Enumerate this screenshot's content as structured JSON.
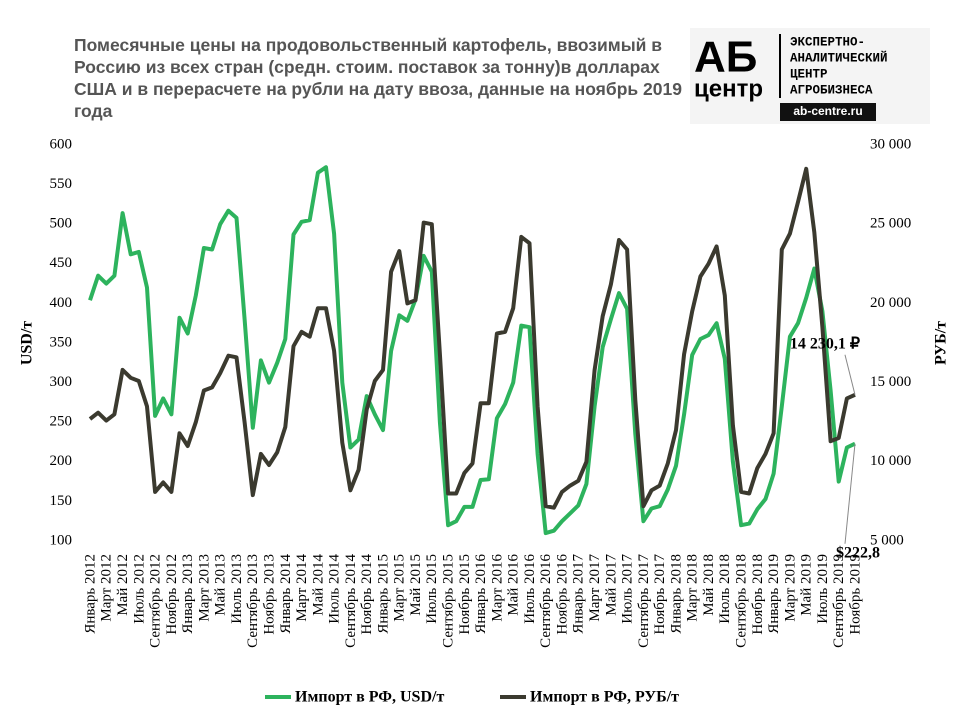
{
  "chart_data": {
    "type": "line",
    "title": "Помесячные цены на продовольственный картофель, ввозимый в Россию из всех стран (средн. стоим. поставок за тонну)в долларах США и в перерасчете на рубли на дату ввоза, данные на ноябрь 2019 года",
    "ylabel": "USD/т",
    "y2label": "РУБ/т",
    "ylim": [
      100,
      600
    ],
    "yticks": [
      100,
      150,
      200,
      250,
      300,
      350,
      400,
      450,
      500,
      550,
      600
    ],
    "y2lim": [
      5000,
      30000
    ],
    "y2ticks": [
      {
        "value": 5000,
        "label": "5 000"
      },
      {
        "value": 10000,
        "label": "10 000"
      },
      {
        "value": 15000,
        "label": "15 000"
      },
      {
        "value": 20000,
        "label": "20 000"
      },
      {
        "value": 25000,
        "label": "25 000"
      },
      {
        "value": 30000,
        "label": "30 000"
      }
    ],
    "legend": "bottom",
    "categories": [
      "Январь 2012",
      null,
      "Март 2012",
      null,
      "Май 2012",
      null,
      "Июль 2012",
      null,
      "Сентябрь 2012",
      null,
      "Ноябрь 2012",
      null,
      "Январь 2013",
      null,
      "Март 2013",
      null,
      "Май 2013",
      null,
      "Июль 2013",
      null,
      "Сентябрь 2013",
      null,
      "Ноябрь 2013",
      null,
      "Январь 2014",
      null,
      "Март 2014",
      null,
      "Май 2014",
      null,
      "Июль 2014",
      null,
      "Сентябрь 2014",
      null,
      "Ноябрь 2014",
      null,
      "Январь 2015",
      null,
      "Март 2015",
      null,
      "Май 2015",
      null,
      "Июль 2015",
      null,
      "Сентябрь 2015",
      null,
      "Ноябрь 2015",
      null,
      "Январь 2016",
      null,
      "Март 2016",
      null,
      "Май 2016",
      null,
      "Июль 2016",
      null,
      "Сентябрь 2016",
      null,
      "Ноябрь 2016",
      null,
      "Январь 2017",
      null,
      "Март 2017",
      null,
      "Май 2017",
      null,
      "Июль 2017",
      null,
      "Сентябрь 2017",
      null,
      "Ноябрь 2017",
      null,
      "Январь 2018",
      null,
      "Март 2018",
      null,
      "Май 2018",
      null,
      "Июль 2018",
      null,
      "Сентябрь 2018",
      null,
      "Ноябрь 2018",
      null,
      "Январь 2019",
      null,
      "Март 2019",
      null,
      "Май 2019",
      null,
      "Июль 2019",
      null,
      "Сентябрь 2019",
      null,
      "Ноябрь 2019"
    ],
    "series": [
      {
        "name": "Импорт в РФ, USD/т",
        "color": "#2db35d",
        "axis": "y",
        "values": [
          404,
          435,
          425,
          435,
          514,
          462,
          465,
          420,
          258,
          280,
          260,
          382,
          362,
          410,
          470,
          468,
          500,
          517,
          508,
          380,
          243,
          328,
          300,
          325,
          355,
          487,
          503,
          505,
          565,
          572,
          488,
          300,
          218,
          228,
          283,
          260,
          240,
          340,
          385,
          378,
          405,
          460,
          440,
          250,
          120,
          125,
          143,
          143,
          177,
          178,
          255,
          273,
          300,
          372,
          370,
          210,
          110,
          113,
          125,
          135,
          145,
          172,
          270,
          345,
          380,
          413,
          393,
          235,
          125,
          141,
          144,
          165,
          195,
          260,
          335,
          355,
          360,
          375,
          330,
          200,
          120,
          122,
          140,
          153,
          185,
          270,
          358,
          375,
          407,
          444,
          390,
          290,
          175,
          218,
          222.8
        ],
        "value_labels": [
          null,
          null,
          null,
          null,
          null,
          null,
          null,
          null,
          null,
          null,
          null,
          null,
          null,
          null,
          null,
          null,
          null,
          null,
          null,
          null,
          null,
          null,
          null,
          null,
          null,
          null,
          null,
          null,
          null,
          null,
          null,
          null,
          null,
          null,
          null,
          null,
          null,
          null,
          null,
          null,
          null,
          null,
          null,
          null,
          null,
          null,
          null,
          null,
          null,
          null,
          null,
          null,
          null,
          null,
          null,
          null,
          null,
          null,
          null,
          null,
          null,
          null,
          null,
          null,
          null,
          null,
          null,
          null,
          null,
          null,
          null,
          null,
          null,
          null,
          null,
          null,
          null,
          null,
          null,
          null,
          null,
          null,
          null,
          null,
          null,
          null,
          null,
          null,
          null,
          null,
          null,
          null,
          null,
          null,
          "$222,8"
        ]
      },
      {
        "name": "Импорт в РФ, РУБ/т",
        "color": "#3b3a2f",
        "axis": "y2",
        "values": [
          12700,
          13100,
          12600,
          13000,
          15800,
          15300,
          15100,
          13500,
          8100,
          8700,
          8100,
          11800,
          11000,
          12500,
          14500,
          14700,
          15600,
          16700,
          16600,
          12500,
          7900,
          10500,
          9800,
          10600,
          12200,
          17300,
          18200,
          17900,
          19700,
          19700,
          17000,
          11200,
          8200,
          9500,
          13300,
          15100,
          15800,
          22000,
          23300,
          20000,
          20200,
          25100,
          25000,
          16800,
          8000,
          8000,
          9300,
          9900,
          13700,
          13700,
          18100,
          18200,
          19700,
          24200,
          23800,
          13500,
          7200,
          7100,
          8100,
          8500,
          8800,
          10000,
          15800,
          19200,
          21200,
          24000,
          23400,
          13900,
          7200,
          8200,
          8500,
          9900,
          12000,
          16800,
          19500,
          21700,
          22500,
          23600,
          20500,
          12300,
          8100,
          8000,
          9600,
          10500,
          11800,
          23400,
          24400,
          26400,
          28500,
          24500,
          18500,
          11300,
          11500,
          14000,
          14230.1
        ],
        "value_labels": [
          null,
          null,
          null,
          null,
          null,
          null,
          null,
          null,
          null,
          null,
          null,
          null,
          null,
          null,
          null,
          null,
          null,
          null,
          null,
          null,
          null,
          null,
          null,
          null,
          null,
          null,
          null,
          null,
          null,
          null,
          null,
          null,
          null,
          null,
          null,
          null,
          null,
          null,
          null,
          null,
          null,
          null,
          null,
          null,
          null,
          null,
          null,
          null,
          null,
          null,
          null,
          null,
          null,
          null,
          null,
          null,
          null,
          null,
          null,
          null,
          null,
          null,
          null,
          null,
          null,
          null,
          null,
          null,
          null,
          null,
          null,
          null,
          null,
          null,
          null,
          null,
          null,
          null,
          null,
          null,
          null,
          null,
          null,
          null,
          null,
          null,
          null,
          null,
          null,
          null,
          null,
          null,
          null,
          null,
          "14 230,1 ₽"
        ]
      }
    ]
  },
  "logo": {
    "mark": "АБ",
    "mark_sub": "центр",
    "lines": [
      "ЭКСПЕРТНО-",
      "АНАЛИТИЧЕСКИЙ",
      "ЦЕНТР",
      "АГРОБИЗНЕСА"
    ],
    "url": "ab-centre.ru"
  }
}
